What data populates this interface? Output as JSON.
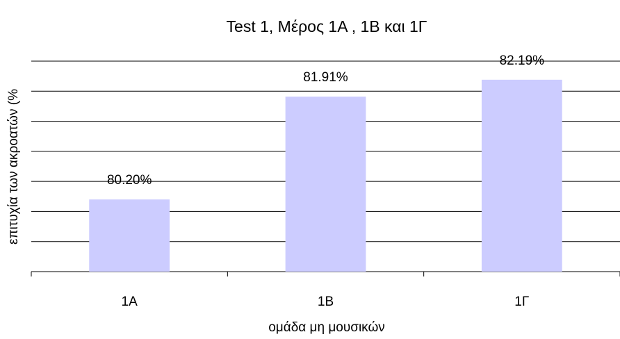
{
  "chart_data": {
    "type": "bar",
    "title": "Test 1, Μέρος 1Α , 1Β και 1Γ",
    "xlabel": "ομάδα μη μουσικών",
    "ylabel": "επιτυχία των ακροατών (%",
    "categories": [
      "1Α",
      "1Β",
      "1Γ"
    ],
    "values": [
      80.2,
      81.91,
      82.19
    ],
    "value_labels": [
      "80.20%",
      "81.91%",
      "82.19%"
    ],
    "color": "#ccccff",
    "ylim": [
      79,
      82.5
    ],
    "yticks": [
      79,
      79.5,
      80,
      80.5,
      81,
      81.5,
      82,
      82.5
    ],
    "grid": true
  }
}
